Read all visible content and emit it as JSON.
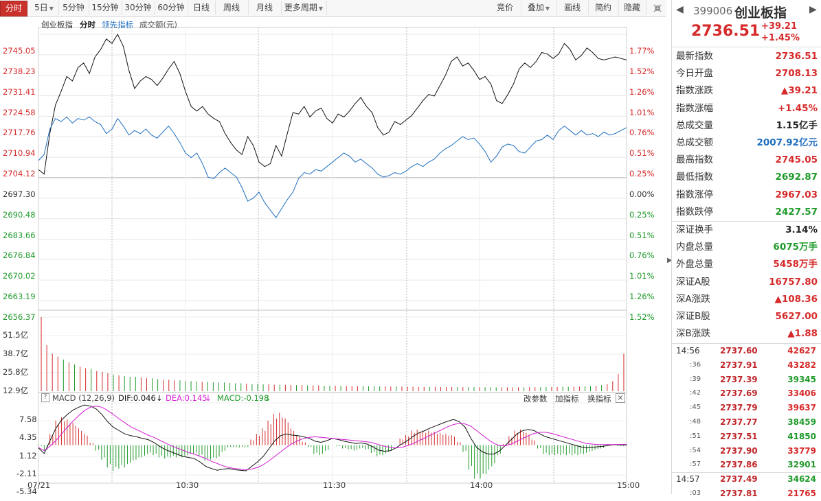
{
  "toolbar": {
    "left": [
      {
        "label": "分时",
        "active": true
      },
      {
        "label": "5日",
        "dropdown": true
      },
      {
        "label": "5分钟"
      },
      {
        "label": "15分钟"
      },
      {
        "label": "30分钟"
      },
      {
        "label": "60分钟"
      },
      {
        "label": "日线"
      },
      {
        "label": "周线"
      },
      {
        "label": "月线"
      },
      {
        "label": "更多周期",
        "dropdown": true
      }
    ],
    "right": [
      {
        "label": "竞价"
      },
      {
        "label": "叠加",
        "dropdown": true
      },
      {
        "label": "画线"
      },
      {
        "label": "简约"
      },
      {
        "label": "隐藏"
      }
    ],
    "icon": "shrink-icon"
  },
  "chart_header": {
    "name": "创业板指",
    "mode": "分时",
    "leading": "领先指标",
    "volume": "成交额(元)"
  },
  "chart_data": [
    {
      "type": "line",
      "title": "创业板指 分时",
      "y_left_ticks": [
        "2745.05",
        "2738.23",
        "2731.41",
        "2724.58",
        "2717.76",
        "2710.94",
        "2704.12",
        "2697.30",
        "2690.48",
        "2683.66",
        "2676.84",
        "2670.02",
        "2663.19",
        "2656.37"
      ],
      "y_right_ticks": [
        {
          "t": "1.77%",
          "c": "red"
        },
        {
          "t": "1.52%",
          "c": "red"
        },
        {
          "t": "1.26%",
          "c": "red"
        },
        {
          "t": "1.01%",
          "c": "red"
        },
        {
          "t": "0.76%",
          "c": "red"
        },
        {
          "t": "0.51%",
          "c": "red"
        },
        {
          "t": "0.25%",
          "c": "red"
        },
        {
          "t": "0.00%",
          "c": "black"
        },
        {
          "t": "0.25%",
          "c": "green"
        },
        {
          "t": "0.51%",
          "c": "green"
        },
        {
          "t": "0.76%",
          "c": "green"
        },
        {
          "t": "1.01%",
          "c": "green"
        },
        {
          "t": "1.26%",
          "c": "green"
        },
        {
          "t": "1.52%",
          "c": "green"
        }
      ],
      "ylim": [
        2656.37,
        2745.05
      ],
      "x_ticks": [
        "07/21",
        "10:30",
        "11:30",
        "14:00",
        "15:00"
      ],
      "series": [
        {
          "name": "创业板指",
          "color": "#111111",
          "values": [
            2700.0,
            2698.5,
            2712.0,
            2721.5,
            2726.0,
            2731.0,
            2729.5,
            2734.0,
            2735.5,
            2732.0,
            2737.5,
            2740.0,
            2743.5,
            2742.0,
            2745.05,
            2741.0,
            2733.0,
            2727.0,
            2729.5,
            2731.0,
            2730.0,
            2728.0,
            2730.5,
            2733.5,
            2736.0,
            2732.0,
            2726.0,
            2721.0,
            2719.5,
            2721.0,
            2718.5,
            2717.0,
            2716.0,
            2712.0,
            2709.0,
            2706.5,
            2705.0,
            2711.0,
            2708.0,
            2702.5,
            2701.0,
            2702.0,
            2708.0,
            2704.5,
            2712.0,
            2719.0,
            2718.5,
            2721.0,
            2717.5,
            2719.5,
            2720.5,
            2717.0,
            2715.5,
            2718.5,
            2717.5,
            2719.5,
            2722.0,
            2724.0,
            2721.0,
            2719.0,
            2714.0,
            2711.5,
            2712.5,
            2716.0,
            2715.0,
            2716.5,
            2718.0,
            2720.5,
            2723.0,
            2725.0,
            2724.5,
            2728.0,
            2731.5,
            2736.0,
            2737.5,
            2734.5,
            2735.5,
            2733.0,
            2730.0,
            2731.0,
            2728.5,
            2723.0,
            2722.0,
            2725.0,
            2728.5,
            2733.5,
            2735.5,
            2734.0,
            2736.0,
            2739.0,
            2738.5,
            2737.0,
            2738.5,
            2742.0,
            2740.0,
            2736.5,
            2738.0,
            2740.5,
            2739.0,
            2737.0,
            2736.5,
            2737.0,
            2737.5,
            2737.0,
            2736.51
          ]
        },
        {
          "name": "领先指标",
          "color": "#1f6fc0",
          "values": [
            2703.0,
            2705.0,
            2713.5,
            2717.0,
            2716.0,
            2717.5,
            2715.5,
            2717.0,
            2716.5,
            2717.5,
            2716.0,
            2715.0,
            2712.0,
            2713.5,
            2717.0,
            2714.5,
            2711.5,
            2713.0,
            2712.0,
            2713.5,
            2711.5,
            2710.5,
            2712.5,
            2714.5,
            2712.0,
            2709.0,
            2705.5,
            2704.0,
            2705.5,
            2702.0,
            2697.5,
            2697.0,
            2699.0,
            2700.5,
            2699.0,
            2697.5,
            2694.0,
            2689.5,
            2690.5,
            2692.5,
            2689.0,
            2686.5,
            2684.0,
            2687.0,
            2690.0,
            2692.5,
            2697.0,
            2699.0,
            2698.5,
            2700.0,
            2699.5,
            2701.0,
            2702.5,
            2704.0,
            2705.5,
            2704.5,
            2702.5,
            2703.5,
            2702.0,
            2700.5,
            2698.5,
            2697.5,
            2698.0,
            2699.0,
            2698.5,
            2699.5,
            2701.0,
            2702.0,
            2701.0,
            2702.5,
            2703.5,
            2705.5,
            2707.0,
            2708.0,
            2709.5,
            2711.0,
            2710.0,
            2710.5,
            2708.5,
            2706.0,
            2702.5,
            2704.5,
            2707.5,
            2708.5,
            2708.0,
            2706.0,
            2705.5,
            2707.5,
            2709.5,
            2710.0,
            2711.5,
            2710.0,
            2713.0,
            2714.5,
            2713.0,
            2711.5,
            2713.0,
            2711.5,
            2712.0,
            2711.0,
            2712.5,
            2711.5,
            2712.0,
            2713.0,
            2714.0
          ]
        }
      ]
    },
    {
      "type": "bar",
      "title": "成交额",
      "y_ticks": [
        "51.5亿",
        "38.7亿",
        "25.8亿",
        "12.9亿"
      ],
      "ylim": [
        0,
        51.5
      ],
      "values": [
        51.5,
        32.0,
        26.0,
        24.0,
        22.0,
        20.0,
        18.5,
        17.0,
        16.0,
        15.5,
        14.0,
        13.5,
        12.5,
        11.5,
        11.0,
        10.5,
        10.0,
        10.0,
        9.5,
        9.0,
        9.0,
        8.5,
        8.0,
        8.0,
        7.5,
        7.5,
        7.0,
        7.0,
        6.8,
        6.5,
        6.5,
        6.2,
        6.0,
        6.0,
        5.8,
        5.5,
        5.5,
        5.2,
        5.0,
        5.0,
        4.8,
        4.8,
        4.5,
        4.5,
        4.5,
        4.3,
        4.2,
        4.2,
        4.0,
        4.0,
        4.0,
        3.8,
        3.8,
        3.8,
        3.6,
        3.6,
        3.5,
        3.5,
        3.5,
        3.4,
        3.4,
        3.3,
        3.3,
        3.2,
        3.2,
        3.2,
        3.1,
        3.1,
        3.0,
        3.0,
        3.0,
        3.0,
        2.9,
        2.9,
        2.9,
        2.8,
        2.8,
        2.8,
        2.8,
        2.8,
        2.7,
        2.7,
        2.7,
        2.7,
        2.7,
        2.7,
        2.7,
        2.7,
        2.8,
        2.8,
        2.8,
        2.8,
        2.9,
        2.9,
        3.0,
        3.0,
        3.1,
        3.2,
        3.3,
        3.5,
        3.8,
        4.2,
        5.0,
        7.0,
        12.0,
        26.0
      ],
      "up": [
        1,
        1,
        1,
        1,
        0,
        1,
        0,
        1,
        1,
        0,
        1,
        1,
        1,
        0,
        1,
        0,
        0,
        0,
        1,
        1,
        0,
        0,
        1,
        1,
        1,
        0,
        0,
        0,
        0,
        1,
        0,
        0,
        0,
        0,
        0,
        0,
        0,
        1,
        0,
        0,
        0,
        1,
        1,
        0,
        1,
        1,
        0,
        1,
        0,
        1,
        1,
        0,
        0,
        1,
        0,
        1,
        1,
        1,
        0,
        0,
        0,
        0,
        1,
        1,
        0,
        1,
        1,
        1,
        1,
        1,
        0,
        1,
        1,
        1,
        1,
        0,
        1,
        0,
        0,
        1,
        0,
        0,
        0,
        1,
        1,
        1,
        1,
        0,
        1,
        1,
        0,
        0,
        1,
        1,
        0,
        0,
        1,
        1,
        0,
        0,
        1,
        0,
        1,
        1,
        1,
        1
      ],
      "up_color": "#d62a2a",
      "down_color": "#1f9a2a"
    },
    {
      "type": "line",
      "title": "MACD (12,26,9)",
      "y_ticks": [
        "7.58",
        "4.35",
        "1.12",
        "-2.11",
        "-5.34"
      ],
      "ylim": [
        -5.34,
        7.58
      ],
      "series": [
        {
          "name": "DIF",
          "color": "#111111",
          "values": [
            -0.5,
            -1.5,
            0.8,
            3.0,
            4.5,
            5.5,
            6.3,
            6.8,
            7.2,
            7.0,
            6.5,
            5.5,
            4.2,
            3.2,
            2.6,
            2.0,
            1.7,
            1.5,
            1.2,
            1.0,
            0.5,
            -0.2,
            -0.8,
            -1.2,
            -1.6,
            -2.0,
            -2.2,
            -2.4,
            -3.0,
            -3.8,
            -4.2,
            -4.5,
            -4.3,
            -4.2,
            -4.4,
            -4.5,
            -4.6,
            -3.8,
            -3.0,
            -2.0,
            -0.6,
            0.8,
            1.7,
            2.0,
            1.8,
            1.7,
            1.5,
            1.2,
            0.7,
            0.5,
            0.8,
            1.2,
            1.0,
            0.7,
            0.5,
            0.3,
            0.4,
            0.2,
            -0.3,
            -0.9,
            -1.1,
            -1.0,
            -0.5,
            0.2,
            0.8,
            1.6,
            2.2,
            2.6,
            3.1,
            3.5,
            3.9,
            4.3,
            4.6,
            4.2,
            3.2,
            1.2,
            -0.4,
            -1.2,
            -1.6,
            -1.6,
            -1.0,
            0.0,
            1.0,
            2.0,
            2.6,
            2.8,
            2.6,
            2.0,
            1.5,
            1.2,
            0.9,
            0.6,
            0.3,
            0.0,
            -0.3,
            -0.5,
            -0.4,
            -0.3,
            -0.2,
            0.0,
            0.1,
            0.05,
            0.046
          ]
        },
        {
          "name": "DEA",
          "color": "#d41ad4",
          "values": [
            -0.4,
            -1.0,
            -0.2,
            0.8,
            2.0,
            3.2,
            4.3,
            5.3,
            6.2,
            6.8,
            7.0,
            6.8,
            6.2,
            5.5,
            4.7,
            4.0,
            3.3,
            2.8,
            2.3,
            1.8,
            1.4,
            0.9,
            0.4,
            -0.1,
            -0.5,
            -0.9,
            -1.3,
            -1.6,
            -2.0,
            -2.4,
            -2.9,
            -3.3,
            -3.7,
            -4.0,
            -4.2,
            -4.3,
            -4.4,
            -4.3,
            -4.0,
            -3.5,
            -2.8,
            -2.0,
            -1.2,
            -0.4,
            0.3,
            0.8,
            1.2,
            1.4,
            1.5,
            1.4,
            1.3,
            1.2,
            1.1,
            1.0,
            0.9,
            0.8,
            0.7,
            0.6,
            0.4,
            0.1,
            -0.2,
            -0.4,
            -0.5,
            -0.4,
            -0.1,
            0.3,
            0.8,
            1.3,
            1.8,
            2.3,
            2.8,
            3.3,
            3.7,
            3.9,
            3.8,
            3.4,
            2.6,
            1.8,
            1.0,
            0.3,
            -0.1,
            -0.1,
            0.2,
            0.7,
            1.2,
            1.7,
            2.1,
            2.3,
            2.3,
            2.1,
            1.8,
            1.5,
            1.2,
            0.9,
            0.6,
            0.3,
            0.2,
            0.1,
            0.1,
            0.1,
            0.12,
            0.14,
            0.145
          ]
        }
      ],
      "histogram_colors": {
        "pos": "#d62a2a",
        "neg": "#1f9a2a"
      }
    }
  ],
  "chart_labels": {
    "macd_title": "MACD (12,26,9)",
    "dif": "DIF:0.046",
    "dea": "DEA:0.145",
    "macd": "MACD:-0.198",
    "arrow": "↓",
    "actions": [
      "改参数",
      "加指标",
      "换指标"
    ],
    "close": "×",
    "question": "?"
  },
  "side": {
    "code": "399006",
    "name": "创业板指",
    "price": "2736.51",
    "change": "+39.21",
    "pct": "+1.45%",
    "stats": [
      {
        "k": "最新指数",
        "v": "2736.51",
        "c": "red"
      },
      {
        "k": "今日开盘",
        "v": "2708.13",
        "c": "red"
      },
      {
        "k": "指数涨跌",
        "v": "▲39.21",
        "c": "red"
      },
      {
        "k": "指数涨幅",
        "v": "+1.45%",
        "c": "red"
      },
      {
        "k": "总成交量",
        "v": "1.15亿手",
        "c": "black"
      },
      {
        "k": "总成交额",
        "v": "2007.92亿元",
        "c": "blue"
      },
      {
        "k": "最高指数",
        "v": "2745.05",
        "c": "red"
      },
      {
        "k": "最低指数",
        "v": "2692.87",
        "c": "green"
      },
      {
        "k": "指数涨停",
        "v": "2967.03",
        "c": "red"
      },
      {
        "k": "指数跌停",
        "v": "2427.57",
        "c": "green"
      }
    ],
    "stats2": [
      {
        "k": "深证换手",
        "v": "3.14%",
        "c": "black"
      },
      {
        "k": "内盘总量",
        "v": "6075万手",
        "c": "green"
      },
      {
        "k": "外盘总量",
        "v": "5458万手",
        "c": "red"
      },
      {
        "k": "深证A股",
        "v": "16757.80",
        "c": "red"
      },
      {
        "k": "深A涨跌",
        "v": "▲108.36",
        "c": "red"
      },
      {
        "k": "深证B股",
        "v": "5627.00",
        "c": "red"
      },
      {
        "k": "深B涨跌",
        "v": "▲1.88",
        "c": "red"
      }
    ],
    "ticks": [
      {
        "t": "14:56",
        "p": "2737.60",
        "q": "42627",
        "c": "red",
        "big": true
      },
      {
        "t": ":36",
        "p": "2737.91",
        "q": "43282",
        "c": "red"
      },
      {
        "t": ":39",
        "p": "2737.39",
        "q": "39345",
        "c": "green"
      },
      {
        "t": ":42",
        "p": "2737.69",
        "q": "33406",
        "c": "red"
      },
      {
        "t": ":45",
        "p": "2737.79",
        "q": "39637",
        "c": "red"
      },
      {
        "t": ":48",
        "p": "2737.77",
        "q": "38459",
        "c": "green"
      },
      {
        "t": ":51",
        "p": "2737.51",
        "q": "41850",
        "c": "green"
      },
      {
        "t": ":54",
        "p": "2737.90",
        "q": "33779",
        "c": "red"
      },
      {
        "t": ":57",
        "p": "2737.86",
        "q": "32901",
        "c": "green"
      },
      {
        "t": "14:57",
        "p": "2737.49",
        "q": "34624",
        "c": "green",
        "big": true
      },
      {
        "t": ":03",
        "p": "2737.81",
        "q": "21765",
        "c": "red"
      }
    ]
  }
}
